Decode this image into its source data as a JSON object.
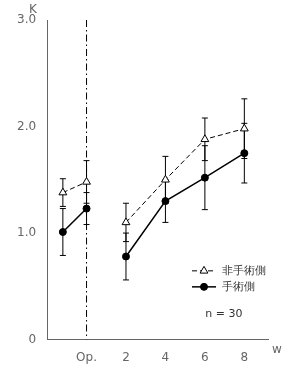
{
  "chart_data": {
    "type": "line",
    "xlabel": "w",
    "ylabel": "K",
    "annotation": "n = 30",
    "xlim": [
      -2.0,
      9.2
    ],
    "xticks": [
      {
        "value": -1.2,
        "label": ""
      },
      {
        "value": 0,
        "label": "Op."
      },
      2,
      4,
      6,
      8
    ],
    "ylim": [
      0,
      3.0
    ],
    "yticks": [
      0,
      {
        "value": 1.0,
        "label": "1.0"
      },
      {
        "value": 2.0,
        "label": "2.0"
      },
      {
        "value": 3.0,
        "label": "3.0"
      }
    ],
    "grid": false,
    "legend": "lower right",
    "reference_lines": [
      {
        "x": 0,
        "line_style": "dashdot",
        "color": "black"
      }
    ],
    "series": [
      {
        "name": "非手術側",
        "color": "black",
        "marker": "open_triangle",
        "line_style": "dashed",
        "x": [
          -1.2,
          0
        ],
        "values": [
          1.38,
          1.48
        ],
        "errors": [
          0.13,
          0.2
        ]
      },
      {
        "name": "非手術側",
        "color": "black",
        "marker": "open_triangle",
        "line_style": "dashed",
        "x": [
          2,
          4,
          6,
          8
        ],
        "values": [
          1.1,
          1.5,
          1.88,
          1.98
        ],
        "errors": [
          0.18,
          0.22,
          0.2,
          0.28
        ]
      },
      {
        "name": "手術側",
        "color": "black",
        "marker": "filled_circle",
        "line_style": "solid",
        "x": [
          -1.2,
          0
        ],
        "values": [
          1.01,
          1.23
        ],
        "errors": [
          0.22,
          0.15
        ]
      },
      {
        "name": "手術側",
        "color": "black",
        "marker": "filled_circle",
        "line_style": "solid",
        "x": [
          2,
          4,
          6,
          8
        ],
        "values": [
          0.78,
          1.3,
          1.52,
          1.75
        ],
        "errors": [
          0.22,
          0.2,
          0.3,
          0.28
        ]
      }
    ]
  }
}
